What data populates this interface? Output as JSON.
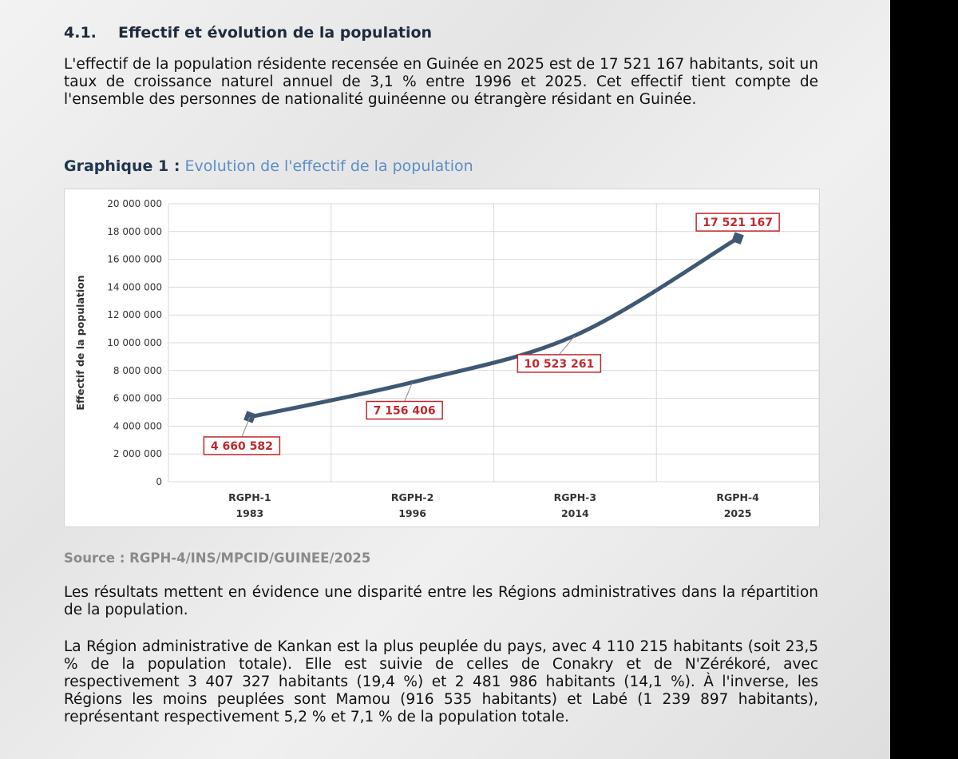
{
  "section": {
    "number": "4.1.",
    "title": "Effectif et évolution de la population"
  },
  "paragraphs": {
    "p1": "L'effectif de la population résidente recensée en Guinée en 2025 est de 17 521 167 habitants, soit un taux de croissance naturel annuel de 3,1 % entre 1996 et 2025. Cet effectif tient compte de l'ensemble des personnes de nationalité guinéenne ou étrangère résidant en Guinée.",
    "p2": "Les résultats mettent en évidence une disparité entre les Régions administratives dans la répartition de la population.",
    "p3": "La Région administrative de Kankan est la plus peuplée du pays, avec 4 110 215 habitants (soit 23,5 % de la population totale). Elle est suivie de celles de Conakry et de N'Zérékoré, avec respectivement 3 407 327 habitants (19,4 %) et 2 481 986 habitants (14,1 %).  À l'inverse, les Régions les moins peuplées sont Mamou (916 535 habitants) et Labé (1 239 897 habitants), représentant respectivement 5,2 % et 7,1 % de la population totale."
  },
  "figure": {
    "caption_lead": "Graphique 1 :",
    "caption_title": "Evolution de l'effectif de la population",
    "source": "Source : RGPH-4/INS/MPCID/GUINEE/2025"
  },
  "chart_data": {
    "type": "line",
    "title": "",
    "xlabel": "",
    "ylabel": "Effectif de la population",
    "categories": [
      [
        "RGPH-1",
        "1983"
      ],
      [
        "RGPH-2",
        "1996"
      ],
      [
        "RGPH-3",
        "2014"
      ],
      [
        "RGPH-4",
        "2025"
      ]
    ],
    "series": [
      {
        "values": [
          4660582,
          7156406,
          10523261,
          17521167
        ],
        "labels": [
          "4 660 582",
          "7 156 406",
          "10 523 261",
          "17 521 167"
        ]
      }
    ],
    "ylim": [
      0,
      20000000
    ],
    "yticks": [
      0,
      2000000,
      4000000,
      6000000,
      8000000,
      10000000,
      12000000,
      14000000,
      16000000,
      18000000,
      20000000
    ],
    "ytick_labels": [
      "0",
      "2 000 000",
      "4 000 000",
      "6 000 000",
      "8 000 000",
      "10 000 000",
      "12 000 000",
      "14 000 000",
      "16 000 000",
      "18 000 000",
      "20 000 000"
    ],
    "grid": true,
    "line_color": "#3f5874",
    "label_color": "#c0282d"
  }
}
